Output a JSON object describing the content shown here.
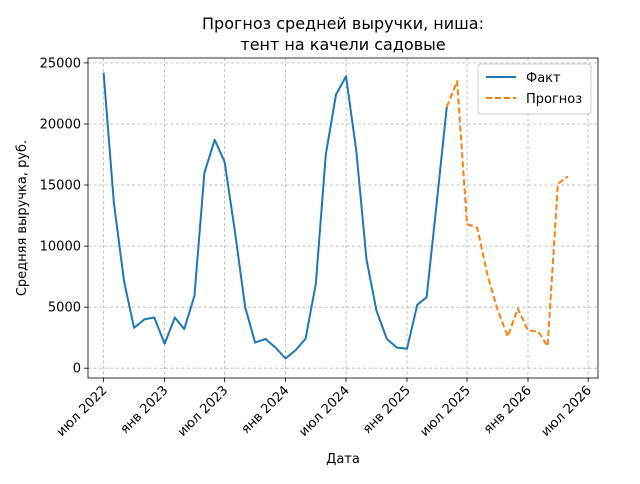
{
  "chart_data": {
    "type": "line",
    "title": "Прогноз средней выручки, ниша:",
    "subtitle": "тент на качели садовые",
    "xlabel": "Дата",
    "ylabel": "Средняя выручка, руб.",
    "ylim": [
      -800,
      25400
    ],
    "xlim": [
      "2022-05-15",
      "2026-07-31"
    ],
    "grid": true,
    "legend_position": "top-right",
    "y_ticks": [
      0,
      5000,
      10000,
      15000,
      20000,
      25000
    ],
    "x_ticks": [
      {
        "date": "2022-07-01",
        "label": "июл 2022"
      },
      {
        "date": "2023-01-01",
        "label": "янв 2023"
      },
      {
        "date": "2023-07-01",
        "label": "июл 2023"
      },
      {
        "date": "2024-01-01",
        "label": "янв 2024"
      },
      {
        "date": "2024-07-01",
        "label": "июл 2024"
      },
      {
        "date": "2025-01-01",
        "label": "янв 2025"
      },
      {
        "date": "2025-07-01",
        "label": "июл 2025"
      },
      {
        "date": "2026-01-01",
        "label": "янв 2026"
      },
      {
        "date": "2026-07-01",
        "label": "июл 2026"
      }
    ],
    "series": [
      {
        "name": "Факт",
        "color": "#1f77b4",
        "style": "solid",
        "points": [
          [
            "2022-07-01",
            24200
          ],
          [
            "2022-08-01",
            13500
          ],
          [
            "2022-09-01",
            7100
          ],
          [
            "2022-10-01",
            3300
          ],
          [
            "2022-11-01",
            4000
          ],
          [
            "2022-12-01",
            4150
          ],
          [
            "2023-01-01",
            2000
          ],
          [
            "2023-02-01",
            4150
          ],
          [
            "2023-03-01",
            3200
          ],
          [
            "2023-04-01",
            5900
          ],
          [
            "2023-05-01",
            16000
          ],
          [
            "2023-06-01",
            18700
          ],
          [
            "2023-07-01",
            16900
          ],
          [
            "2023-08-01",
            11200
          ],
          [
            "2023-09-01",
            5000
          ],
          [
            "2023-10-01",
            2100
          ],
          [
            "2023-11-01",
            2400
          ],
          [
            "2023-12-01",
            1700
          ],
          [
            "2024-01-01",
            800
          ],
          [
            "2024-02-01",
            1500
          ],
          [
            "2024-03-01",
            2400
          ],
          [
            "2024-04-01",
            6900
          ],
          [
            "2024-05-01",
            17500
          ],
          [
            "2024-06-01",
            22400
          ],
          [
            "2024-07-01",
            23900
          ],
          [
            "2024-08-01",
            17800
          ],
          [
            "2024-09-01",
            8900
          ],
          [
            "2024-10-01",
            4700
          ],
          [
            "2024-11-01",
            2400
          ],
          [
            "2024-12-01",
            1700
          ],
          [
            "2025-01-01",
            1600
          ],
          [
            "2025-02-01",
            5200
          ],
          [
            "2025-03-01",
            5800
          ],
          [
            "2025-04-01",
            13600
          ],
          [
            "2025-05-01",
            21400
          ]
        ]
      },
      {
        "name": "Прогноз",
        "color": "#ff7f0e",
        "style": "dashed",
        "points": [
          [
            "2025-05-01",
            21400
          ],
          [
            "2025-06-01",
            23500
          ],
          [
            "2025-07-01",
            11800
          ],
          [
            "2025-08-01",
            11500
          ],
          [
            "2025-09-01",
            7600
          ],
          [
            "2025-10-01",
            4800
          ],
          [
            "2025-11-01",
            2600
          ],
          [
            "2025-12-01",
            4900
          ],
          [
            "2026-01-01",
            3100
          ],
          [
            "2026-02-01",
            3000
          ],
          [
            "2026-03-01",
            1800
          ],
          [
            "2026-04-01",
            15100
          ],
          [
            "2026-05-01",
            15700
          ]
        ]
      }
    ]
  }
}
